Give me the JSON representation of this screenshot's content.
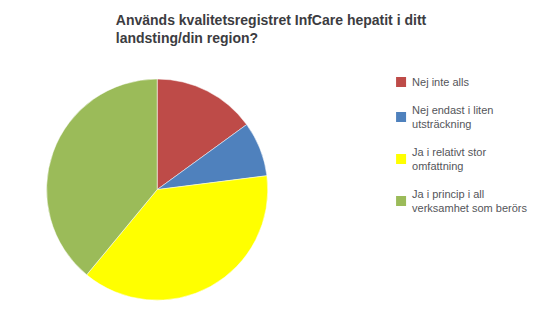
{
  "chart_data": {
    "type": "pie",
    "title": "Används kvalitetsregistret InfCare hepatit i ditt\nlandsting/din region?",
    "categories": [
      "Nej inte alls",
      "Nej endast i liten\nutsträckning",
      "Ja i relativt stor\nomfattning",
      "Ja i princip i all\nverksamhet som berörs"
    ],
    "values": [
      15,
      8,
      38,
      39
    ],
    "colors": [
      "#BE4B48",
      "#4F81BD",
      "#FFFF00",
      "#9BBB59"
    ],
    "legend": "right"
  }
}
